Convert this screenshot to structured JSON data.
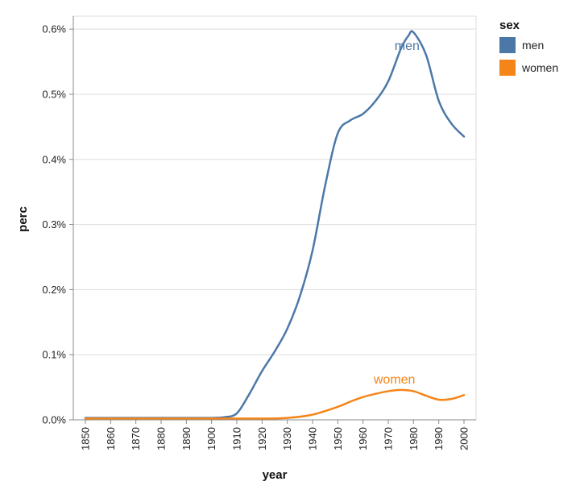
{
  "chart_data": {
    "type": "line",
    "title": "",
    "xlabel": "year",
    "ylabel": "perc",
    "xlim": [
      1850,
      2000
    ],
    "ylim": [
      0,
      0.0062
    ],
    "grid": true,
    "x_ticks": [
      1850,
      1860,
      1870,
      1880,
      1890,
      1900,
      1910,
      1920,
      1930,
      1940,
      1950,
      1960,
      1970,
      1980,
      1990,
      2000
    ],
    "y_ticks": [
      0,
      0.001,
      0.002,
      0.003,
      0.004,
      0.005,
      0.006
    ],
    "y_tick_labels": [
      "0.0%",
      "0.1%",
      "0.2%",
      "0.3%",
      "0.4%",
      "0.5%",
      "0.6%"
    ],
    "legend": {
      "title": "sex",
      "placement": "top-right",
      "entries": [
        "men",
        "women"
      ]
    },
    "series": [
      {
        "name": "men",
        "color": "#4c78a8",
        "label": "men",
        "x": [
          1850,
          1860,
          1870,
          1880,
          1890,
          1900,
          1905,
          1910,
          1915,
          1920,
          1925,
          1930,
          1935,
          1940,
          1945,
          1950,
          1955,
          1960,
          1965,
          1970,
          1975,
          1978,
          1980,
          1985,
          1990,
          1995,
          2000
        ],
        "y": [
          3e-05,
          3e-05,
          3e-05,
          3e-05,
          3e-05,
          3e-05,
          4e-05,
          0.0001,
          0.0004,
          0.00075,
          0.00105,
          0.0014,
          0.0019,
          0.0026,
          0.0036,
          0.0044,
          0.0046,
          0.0047,
          0.0049,
          0.0052,
          0.0057,
          0.0059,
          0.00595,
          0.0056,
          0.0049,
          0.00455,
          0.00435
        ]
      },
      {
        "name": "women",
        "color": "#f58518",
        "label": "women",
        "x": [
          1850,
          1860,
          1870,
          1880,
          1890,
          1900,
          1910,
          1920,
          1930,
          1940,
          1950,
          1955,
          1960,
          1965,
          1970,
          1975,
          1980,
          1985,
          1990,
          1995,
          2000
        ],
        "y": [
          2e-05,
          2e-05,
          2e-05,
          2e-05,
          2e-05,
          2e-05,
          2e-05,
          2e-05,
          3e-05,
          8e-05,
          0.0002,
          0.00028,
          0.00035,
          0.0004,
          0.00044,
          0.00046,
          0.00044,
          0.00037,
          0.00031,
          0.00032,
          0.00038
        ]
      }
    ]
  }
}
